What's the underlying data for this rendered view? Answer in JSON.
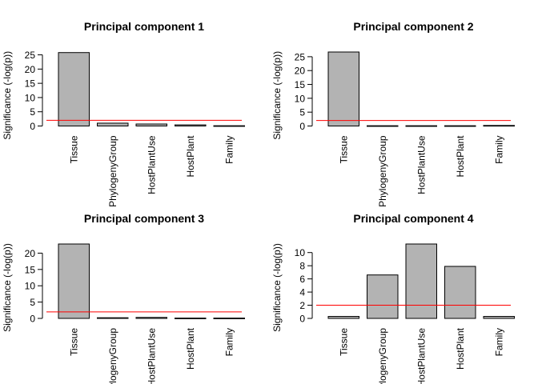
{
  "chart_data": [
    {
      "type": "bar",
      "title": "Principal component 1",
      "ylabel": "Significance (-log(p))",
      "categories": [
        "Tissue",
        "PhylogenyGroup",
        "HostPlantUse",
        "HostPlant",
        "Family"
      ],
      "values": [
        25.8,
        1.0,
        0.7,
        0.4,
        0.1
      ],
      "ylim": [
        0,
        26
      ],
      "yticks": [
        0,
        5,
        10,
        15,
        20,
        25
      ],
      "threshold": 2.0,
      "colors": {
        "bar": "#b3b3b3",
        "border": "#000000",
        "threshold": "#ff0000"
      }
    },
    {
      "type": "bar",
      "title": "Principal component 2",
      "ylabel": "Significance (-log(p))",
      "categories": [
        "Tissue",
        "PhylogenyGroup",
        "HostPlantUse",
        "HostPlant",
        "Family"
      ],
      "values": [
        26.7,
        0.1,
        0.1,
        0.1,
        0.2
      ],
      "ylim": [
        0,
        26.7
      ],
      "yticks": [
        0,
        5,
        10,
        15,
        20,
        25
      ],
      "threshold": 2.0,
      "colors": {
        "bar": "#b3b3b3",
        "border": "#000000",
        "threshold": "#ff0000"
      }
    },
    {
      "type": "bar",
      "title": "Principal component 3",
      "ylabel": "Significance (-log(p))",
      "categories": [
        "Tissue",
        "PhylogenyGroup",
        "HostPlantUse",
        "HostPlant",
        "Family"
      ],
      "values": [
        22.8,
        0.2,
        0.3,
        0.1,
        0.1
      ],
      "ylim": [
        0,
        22.8
      ],
      "yticks": [
        0,
        5,
        10,
        15,
        20
      ],
      "threshold": 2.0,
      "colors": {
        "bar": "#b3b3b3",
        "border": "#000000",
        "threshold": "#ff0000"
      }
    },
    {
      "type": "bar",
      "title": "Principal component 4",
      "ylabel": "Significance (-log(p))",
      "categories": [
        "Tissue",
        "PhylogenyGroup",
        "HostPlantUse",
        "HostPlant",
        "Family"
      ],
      "values": [
        0.3,
        6.6,
        11.3,
        7.9,
        0.3
      ],
      "ylim": [
        0,
        11.3
      ],
      "yticks": [
        0,
        2,
        4,
        6,
        8,
        10
      ],
      "threshold": 2.0,
      "colors": {
        "bar": "#b3b3b3",
        "border": "#000000",
        "threshold": "#ff0000"
      }
    }
  ]
}
